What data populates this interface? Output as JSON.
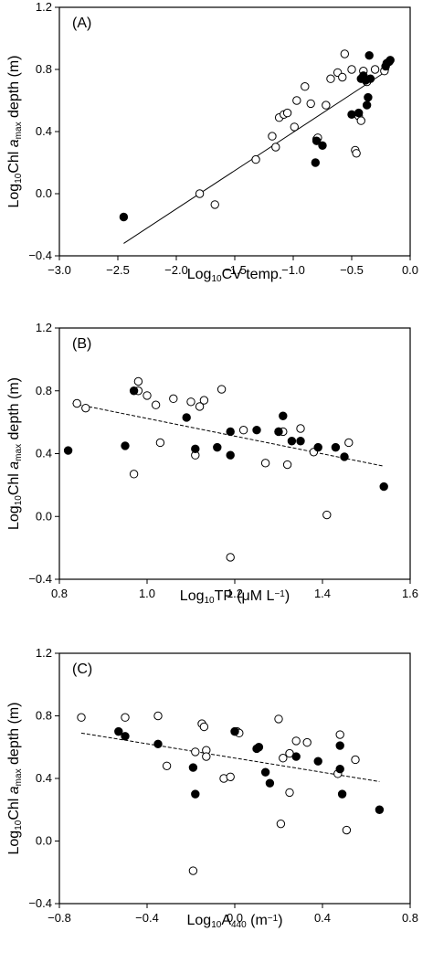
{
  "chart_data": [
    {
      "type": "scatter",
      "panel_label": "(A)",
      "xlabel": "Log10CV temp.",
      "xlabel_parts": [
        "Log",
        "10",
        "CV temp."
      ],
      "ylabel_parts": [
        "Log",
        "10",
        "Chl ",
        "a",
        "max",
        " depth (m)"
      ],
      "xlim": [
        -3.0,
        0.0
      ],
      "ylim": [
        -0.4,
        1.2
      ],
      "xticks": [
        -3.0,
        -2.5,
        -2.0,
        -1.5,
        -1.0,
        -0.5,
        0.0
      ],
      "yticks": [
        -0.4,
        0.0,
        0.4,
        0.8,
        1.2
      ],
      "xtick_labels": [
        "−3.0",
        "−2.5",
        "−2.0",
        "−1.5",
        "−1.0",
        "−0.5",
        "0.0"
      ],
      "ytick_labels": [
        "−0.4",
        "0.0",
        "0.4",
        "0.8",
        "1.2"
      ],
      "regression": {
        "x": [
          -2.45,
          -0.18
        ],
        "y": [
          -0.32,
          0.8
        ],
        "style": "solid"
      },
      "open_points": [
        [
          -1.8,
          0.0
        ],
        [
          -1.67,
          -0.07
        ],
        [
          -1.32,
          0.22
        ],
        [
          -1.18,
          0.37
        ],
        [
          -1.15,
          0.3
        ],
        [
          -1.12,
          0.49
        ],
        [
          -1.08,
          0.51
        ],
        [
          -1.05,
          0.52
        ],
        [
          -0.99,
          0.43
        ],
        [
          -0.97,
          0.6
        ],
        [
          -0.9,
          0.69
        ],
        [
          -0.85,
          0.58
        ],
        [
          -0.8,
          0.35
        ],
        [
          -0.79,
          0.36
        ],
        [
          -0.72,
          0.57
        ],
        [
          -0.68,
          0.74
        ],
        [
          -0.62,
          0.78
        ],
        [
          -0.58,
          0.75
        ],
        [
          -0.56,
          0.9
        ],
        [
          -0.5,
          0.8
        ],
        [
          -0.47,
          0.28
        ],
        [
          -0.46,
          0.26
        ],
        [
          -0.44,
          0.5
        ],
        [
          -0.42,
          0.47
        ],
        [
          -0.4,
          0.79
        ],
        [
          -0.37,
          0.72
        ],
        [
          -0.3,
          0.8
        ],
        [
          -0.22,
          0.79
        ]
      ],
      "filled_points": [
        [
          -2.45,
          -0.15
        ],
        [
          -0.81,
          0.2
        ],
        [
          -0.8,
          0.34
        ],
        [
          -0.75,
          0.31
        ],
        [
          -0.5,
          0.51
        ],
        [
          -0.44,
          0.52
        ],
        [
          -0.42,
          0.74
        ],
        [
          -0.4,
          0.76
        ],
        [
          -0.38,
          0.73
        ],
        [
          -0.37,
          0.57
        ],
        [
          -0.36,
          0.62
        ],
        [
          -0.35,
          0.89
        ],
        [
          -0.34,
          0.74
        ],
        [
          -0.21,
          0.82
        ],
        [
          -0.2,
          0.84
        ],
        [
          -0.18,
          0.85
        ],
        [
          -0.17,
          0.86
        ]
      ]
    },
    {
      "type": "scatter",
      "panel_label": "(B)",
      "xlabel": "Log10TP (μM L−1)",
      "xlabel_parts": [
        "Log",
        "10",
        "TP (μM L",
        "−1",
        ")"
      ],
      "ylabel_parts": [
        "Log",
        "10",
        "Chl ",
        "a",
        "max",
        " depth (m)"
      ],
      "xlim": [
        0.8,
        1.6
      ],
      "ylim": [
        -0.4,
        1.2
      ],
      "xticks": [
        0.8,
        1.0,
        1.2,
        1.4,
        1.6
      ],
      "yticks": [
        -0.4,
        0.0,
        0.4,
        0.8,
        1.2
      ],
      "xtick_labels": [
        "0.8",
        "1.0",
        "1.2",
        "1.4",
        "1.6"
      ],
      "ytick_labels": [
        "−0.4",
        "0.0",
        "0.4",
        "0.8",
        "1.2"
      ],
      "regression": {
        "x": [
          0.83,
          1.54
        ],
        "y": [
          0.72,
          0.32
        ],
        "style": "dashed"
      },
      "open_points": [
        [
          0.84,
          0.72
        ],
        [
          0.86,
          0.69
        ],
        [
          0.97,
          0.27
        ],
        [
          0.98,
          0.86
        ],
        [
          0.98,
          0.8
        ],
        [
          1.0,
          0.77
        ],
        [
          1.02,
          0.71
        ],
        [
          1.03,
          0.47
        ],
        [
          1.06,
          0.75
        ],
        [
          1.1,
          0.73
        ],
        [
          1.11,
          0.39
        ],
        [
          1.12,
          0.7
        ],
        [
          1.13,
          0.74
        ],
        [
          1.17,
          0.81
        ],
        [
          1.19,
          -0.26
        ],
        [
          1.22,
          0.55
        ],
        [
          1.27,
          0.34
        ],
        [
          1.3,
          0.54
        ],
        [
          1.31,
          0.54
        ],
        [
          1.32,
          0.33
        ],
        [
          1.35,
          0.56
        ],
        [
          1.38,
          0.41
        ],
        [
          1.41,
          0.01
        ],
        [
          1.46,
          0.47
        ]
      ],
      "filled_points": [
        [
          0.82,
          0.42
        ],
        [
          0.95,
          0.45
        ],
        [
          0.97,
          0.8
        ],
        [
          1.09,
          0.63
        ],
        [
          1.11,
          0.43
        ],
        [
          1.16,
          0.44
        ],
        [
          1.19,
          0.39
        ],
        [
          1.19,
          0.54
        ],
        [
          1.25,
          0.55
        ],
        [
          1.3,
          0.54
        ],
        [
          1.31,
          0.64
        ],
        [
          1.33,
          0.48
        ],
        [
          1.35,
          0.48
        ],
        [
          1.39,
          0.44
        ],
        [
          1.43,
          0.44
        ],
        [
          1.45,
          0.38
        ],
        [
          1.54,
          0.19
        ]
      ]
    },
    {
      "type": "scatter",
      "panel_label": "(C)",
      "xlabel": "Log10A440 (m−1)",
      "xlabel_parts": [
        "Log",
        "10",
        "A",
        "440",
        " (m",
        "−1",
        ")"
      ],
      "ylabel_parts": [
        "Log",
        "10",
        "Chl ",
        "a",
        "max",
        " depth (m)"
      ],
      "xlim": [
        -0.8,
        0.8
      ],
      "ylim": [
        -0.4,
        1.2
      ],
      "xticks": [
        -0.8,
        -0.4,
        0.0,
        0.4,
        0.8
      ],
      "yticks": [
        -0.4,
        0.0,
        0.4,
        0.8,
        1.2
      ],
      "xtick_labels": [
        "−0.8",
        "−0.4",
        "0.0",
        "0.4",
        "0.8"
      ],
      "ytick_labels": [
        "−0.4",
        "0.0",
        "0.4",
        "0.8",
        "1.2"
      ],
      "regression": {
        "x": [
          -0.7,
          0.66
        ],
        "y": [
          0.69,
          0.38
        ],
        "style": "dashed"
      },
      "open_points": [
        [
          -0.7,
          0.79
        ],
        [
          -0.5,
          0.79
        ],
        [
          -0.35,
          0.8
        ],
        [
          -0.31,
          0.48
        ],
        [
          -0.19,
          -0.19
        ],
        [
          -0.18,
          0.57
        ],
        [
          -0.15,
          0.75
        ],
        [
          -0.14,
          0.73
        ],
        [
          -0.13,
          0.58
        ],
        [
          -0.13,
          0.54
        ],
        [
          -0.05,
          0.4
        ],
        [
          -0.02,
          0.41
        ],
        [
          0.01,
          0.7
        ],
        [
          0.02,
          0.69
        ],
        [
          0.2,
          0.78
        ],
        [
          0.21,
          0.11
        ],
        [
          0.22,
          0.53
        ],
        [
          0.25,
          0.56
        ],
        [
          0.25,
          0.31
        ],
        [
          0.28,
          0.64
        ],
        [
          0.33,
          0.63
        ],
        [
          0.47,
          0.43
        ],
        [
          0.48,
          0.68
        ],
        [
          0.51,
          0.07
        ],
        [
          0.55,
          0.52
        ]
      ],
      "filled_points": [
        [
          -0.53,
          0.7
        ],
        [
          -0.5,
          0.67
        ],
        [
          -0.35,
          0.62
        ],
        [
          -0.19,
          0.47
        ],
        [
          -0.18,
          0.3
        ],
        [
          0.0,
          0.7
        ],
        [
          0.1,
          0.59
        ],
        [
          0.11,
          0.6
        ],
        [
          0.14,
          0.44
        ],
        [
          0.16,
          0.37
        ],
        [
          0.28,
          0.54
        ],
        [
          0.38,
          0.51
        ],
        [
          0.48,
          0.46
        ],
        [
          0.48,
          0.61
        ],
        [
          0.49,
          0.3
        ],
        [
          0.66,
          0.2
        ]
      ]
    }
  ]
}
